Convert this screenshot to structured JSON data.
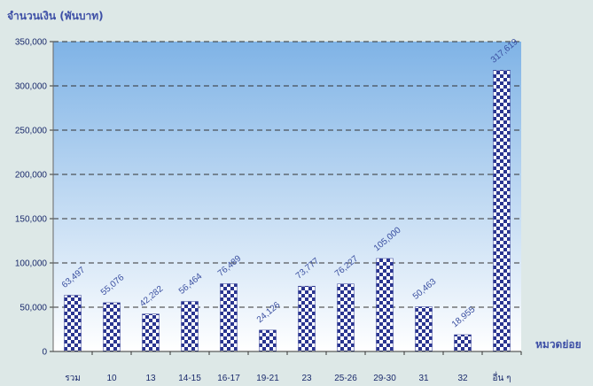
{
  "chart_data": {
    "type": "bar",
    "ylabel": "จำนวนเงิน (พันบาท)",
    "xlabel": "หมวดย่อย",
    "ylim": [
      0,
      350000
    ],
    "yticks": [
      0,
      50000,
      100000,
      150000,
      200000,
      250000,
      300000,
      350000
    ],
    "ytick_labels": [
      "0",
      "50,000",
      "100,000",
      "150,000",
      "200,000",
      "250,000",
      "300,000",
      "350,000"
    ],
    "grid": "horizontal dashed",
    "categories": [
      "รวม",
      "10",
      "13",
      "14-15",
      "16-17",
      "19-21",
      "23",
      "25-26",
      "29-30",
      "31",
      "32",
      "อื่น ๆ"
    ],
    "values": [
      63497,
      55076,
      42282,
      56464,
      76489,
      24126,
      73777,
      76227,
      105000,
      50463,
      18955,
      317619
    ],
    "data_labels": [
      "63,497",
      "55,076",
      "42,282",
      "56,464",
      "76,489",
      "24,126",
      "73,777",
      "76,227",
      "105,000",
      "50,463",
      "18,955",
      "317,619"
    ],
    "colors": {
      "background": "#dde8e7",
      "plot_top": "#7fb3e6",
      "plot_bottom": "#ffffff",
      "bar_pattern_dark": "#2a3590",
      "bar_pattern_light": "#ffffff",
      "text": "#3a4fa0"
    }
  }
}
